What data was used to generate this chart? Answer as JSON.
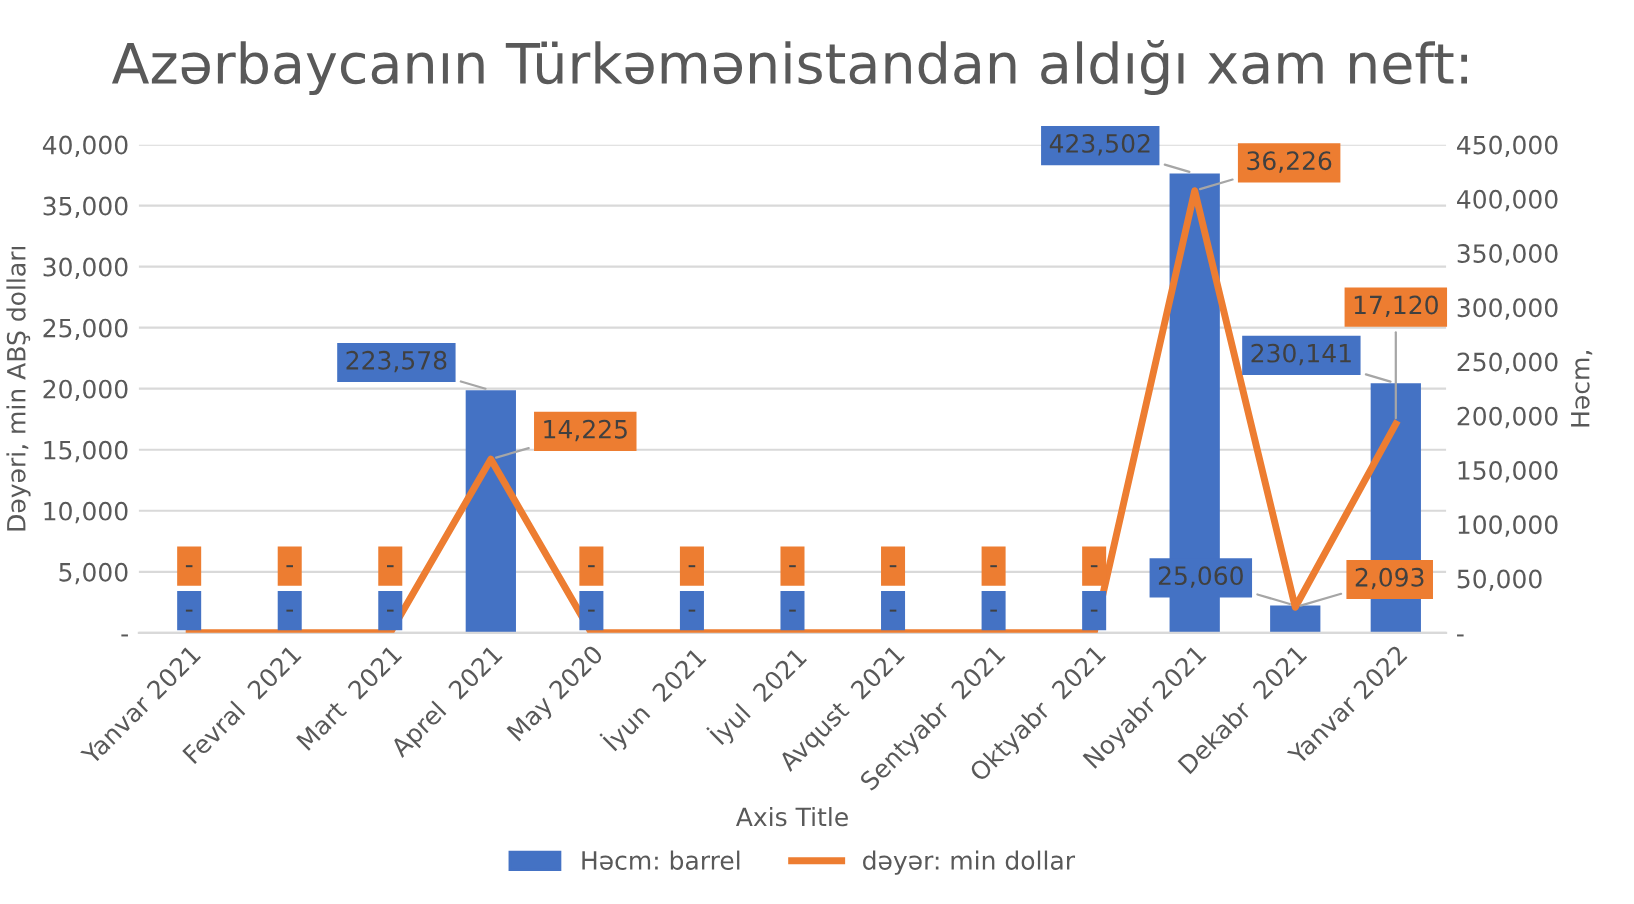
{
  "chart_data": {
    "type": "bar",
    "title": "Azərbaycanın Türkəmənistandan aldığı xam neft:",
    "xlabel": "Axis Title",
    "ylabel": "Dəyəri, min ABŞ dolları",
    "y2label": "Həcm,",
    "categories": [
      "Yanvar 2021",
      "Fevral  2021",
      "Mart  2021",
      "Aprel  2021",
      "May 2020",
      "İyun  2021",
      "İyul  2021",
      "Avqust  2021",
      "Sentyabr  2021",
      "Oktyabr  2021",
      "Noyabr 2021",
      "Dekabr  2021",
      "Yanvar 2022"
    ],
    "series": [
      {
        "name": "Həcm: barrel",
        "axis": "y2",
        "color": "#4472c4",
        "values": [
          0,
          0,
          0,
          223578,
          0,
          0,
          0,
          0,
          0,
          0,
          423502,
          25060,
          230141
        ],
        "value_labels": [
          "-",
          "-",
          "-",
          "223,578",
          "-",
          "-",
          "-",
          "-",
          "-",
          "-",
          "423,502",
          "25,060",
          "230,141"
        ]
      },
      {
        "name": "dəyər: min dollar",
        "type": "line",
        "axis": "y",
        "color": "#ed7d31",
        "values": [
          0,
          0,
          0,
          14225,
          0,
          0,
          0,
          0,
          0,
          0,
          36226,
          2093,
          17120
        ],
        "value_labels": [
          "-",
          "-",
          "-",
          "14,225",
          "-",
          "-",
          "-",
          "-",
          "-",
          "-",
          "36,226",
          "2,093",
          "17,120"
        ]
      }
    ],
    "ylim": [
      0,
      40000
    ],
    "yticks": [
      {
        "value": 0,
        "label": "-"
      },
      {
        "value": 5000,
        "label": "5,000"
      },
      {
        "value": 10000,
        "label": "10,000"
      },
      {
        "value": 15000,
        "label": "15,000"
      },
      {
        "value": 20000,
        "label": "20,000"
      },
      {
        "value": 25000,
        "label": "25,000"
      },
      {
        "value": 30000,
        "label": "30,000"
      },
      {
        "value": 35000,
        "label": "35,000"
      },
      {
        "value": 40000,
        "label": "40,000"
      }
    ],
    "y2lim": [
      0,
      450000
    ],
    "y2ticks": [
      {
        "value": 0,
        "label": "-"
      },
      {
        "value": 50000,
        "label": "50,000"
      },
      {
        "value": 100000,
        "label": "100,000"
      },
      {
        "value": 150000,
        "label": "150,000"
      },
      {
        "value": 200000,
        "label": "200,000"
      },
      {
        "value": 250000,
        "label": "250,000"
      },
      {
        "value": 300000,
        "label": "300,000"
      },
      {
        "value": 350000,
        "label": "350,000"
      },
      {
        "value": 400000,
        "label": "400,000"
      },
      {
        "value": 450000,
        "label": "450,000"
      }
    ],
    "grid": "y",
    "legend": "bottom",
    "marker": "none",
    "line_style": "solid"
  }
}
